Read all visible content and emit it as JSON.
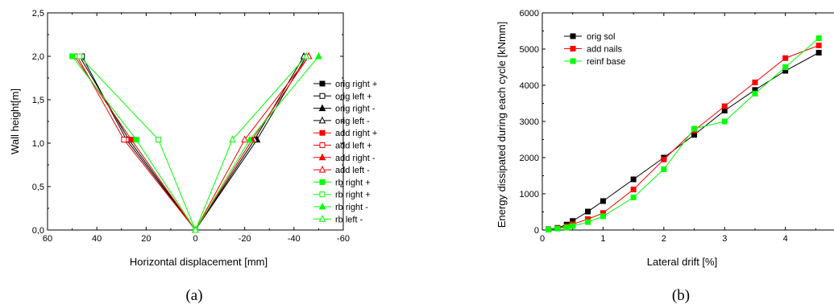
{
  "chart_data": [
    {
      "type": "line",
      "caption": "(a)",
      "xlabel": "Horizontal displacement [mm]",
      "ylabel": "Wall height[m]",
      "xlim": [
        60,
        -60
      ],
      "ylim": [
        0,
        2.5
      ],
      "x_ticks": [
        "60",
        "40",
        "20",
        "0",
        "-20",
        "-40",
        "-60"
      ],
      "y_ticks": [
        "0,0",
        "0,5",
        "1,0",
        "1,5",
        "2,0",
        "2,5"
      ],
      "legend_position": "right",
      "series": [
        {
          "name": "orig right +",
          "color": "#000000",
          "marker": "square-filled",
          "points": [
            [
              0,
              0
            ],
            [
              27,
              1.04
            ],
            [
              47,
              2.0
            ]
          ]
        },
        {
          "name": "orig left +",
          "color": "#000000",
          "marker": "square-open",
          "points": [
            [
              0,
              0
            ],
            [
              28,
              1.04
            ],
            [
              46,
              2.0
            ]
          ]
        },
        {
          "name": "orig right -",
          "color": "#000000",
          "marker": "triangle-filled",
          "points": [
            [
              0,
              0
            ],
            [
              -25,
              1.04
            ],
            [
              -45,
              2.0
            ]
          ]
        },
        {
          "name": "orig left -",
          "color": "#000000",
          "marker": "triangle-open",
          "points": [
            [
              0,
              0
            ],
            [
              -24,
              1.04
            ],
            [
              -44,
              2.0
            ]
          ]
        },
        {
          "name": "add right +",
          "color": "#ff0000",
          "marker": "square-filled",
          "points": [
            [
              0,
              0
            ],
            [
              26,
              1.04
            ],
            [
              49,
              2.0
            ]
          ]
        },
        {
          "name": "add left +",
          "color": "#ff0000",
          "marker": "square-open",
          "points": [
            [
              0,
              0
            ],
            [
              29,
              1.04
            ],
            [
              48,
              2.0
            ]
          ]
        },
        {
          "name": "add right -",
          "color": "#ff0000",
          "marker": "triangle-filled",
          "points": [
            [
              0,
              0
            ],
            [
              -23,
              1.04
            ],
            [
              -46,
              2.0
            ]
          ]
        },
        {
          "name": "add left -",
          "color": "#ff0000",
          "marker": "triangle-open",
          "points": [
            [
              0,
              0
            ],
            [
              -20,
              1.04
            ],
            [
              -46,
              2.0
            ]
          ]
        },
        {
          "name": "rb right +",
          "color": "#00ff00",
          "marker": "square-filled",
          "points": [
            [
              0,
              0
            ],
            [
              24,
              1.04
            ],
            [
              50,
              2.0
            ]
          ]
        },
        {
          "name": "rb right +",
          "color": "#00ff00",
          "marker": "square-open",
          "points": [
            [
              0,
              0
            ],
            [
              15,
              1.04
            ],
            [
              47,
              2.0
            ]
          ]
        },
        {
          "name": "rb right -",
          "color": "#00ff00",
          "marker": "triangle-filled",
          "points": [
            [
              0,
              0
            ],
            [
              -22,
              1.04
            ],
            [
              -50,
              2.0
            ]
          ]
        },
        {
          "name": "rb left -",
          "color": "#00ff00",
          "marker": "triangle-open",
          "points": [
            [
              0,
              0
            ],
            [
              -15,
              1.04
            ],
            [
              -45,
              2.0
            ]
          ]
        }
      ]
    },
    {
      "type": "line",
      "caption": "(b)",
      "xlabel": "Lateral drift [%]",
      "ylabel": "Energy dissipated during each cycle [kNmm]",
      "xlim": [
        0,
        4.8
      ],
      "ylim": [
        0,
        6000
      ],
      "x_ticks": [
        "0",
        "1",
        "2",
        "3",
        "4"
      ],
      "y_ticks": [
        "0",
        "1000",
        "2000",
        "3000",
        "4000",
        "5000",
        "6000"
      ],
      "legend_position": "top-left",
      "series": [
        {
          "name": "orig sol",
          "color": "#000000",
          "marker": "square-filled",
          "x": [
            0.1,
            0.25,
            0.4,
            0.5,
            0.75,
            1.0,
            1.5,
            2.0,
            2.5,
            3.0,
            3.5,
            4.0,
            4.55
          ],
          "y": [
            20,
            60,
            150,
            250,
            510,
            800,
            1400,
            2000,
            2630,
            3300,
            3870,
            4400,
            4900
          ]
        },
        {
          "name": "add nails",
          "color": "#ff0000",
          "marker": "square-filled",
          "x": [
            0.1,
            0.25,
            0.4,
            0.5,
            0.75,
            1.0,
            1.5,
            2.0,
            2.5,
            3.0,
            3.5,
            4.0,
            4.55
          ],
          "y": [
            15,
            50,
            100,
            160,
            300,
            470,
            1120,
            1950,
            2750,
            3420,
            4080,
            4750,
            5100
          ]
        },
        {
          "name": "reinf base",
          "color": "#00ff00",
          "marker": "square-filled",
          "x": [
            0.1,
            0.25,
            0.4,
            0.5,
            0.75,
            1.0,
            1.5,
            2.0,
            2.5,
            3.0,
            3.5,
            4.0,
            4.55
          ],
          "y": [
            10,
            40,
            70,
            110,
            220,
            380,
            900,
            1680,
            2800,
            3000,
            3770,
            4500,
            5300
          ]
        }
      ]
    }
  ]
}
